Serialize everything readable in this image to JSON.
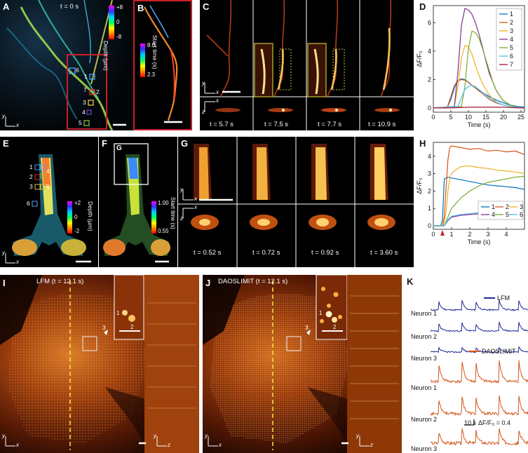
{
  "panels": {
    "A": {
      "label": "A",
      "time": "t = 0 s",
      "colorbar_label": "Depth (μm)",
      "colorbar_ticks": [
        "+8",
        "0",
        "-8"
      ],
      "rois": [
        "6",
        "1",
        "7",
        "2",
        "3",
        "4",
        "5"
      ]
    },
    "B": {
      "label": "B",
      "colorbar_label": "Start time (s)",
      "colorbar_ticks": [
        "8.0",
        "2.3"
      ]
    },
    "C": {
      "label": "C",
      "times": [
        "t = 5.7 s",
        "t = 7.5 s",
        "t = 7.7 s",
        "t = 10.9 s"
      ]
    },
    "E": {
      "label": "E",
      "colorbar_label": "Depth (μm)",
      "colorbar_ticks": [
        "+2",
        "0",
        "-2"
      ],
      "rois": [
        "1",
        "2",
        "3",
        "4",
        "5",
        "6"
      ]
    },
    "F": {
      "label": "F",
      "inset_label": "G",
      "colorbar_label": "Start time (s)",
      "colorbar_ticks": [
        "1.00",
        "0.55"
      ]
    },
    "G": {
      "label": "G",
      "times": [
        "t = 0.52 s",
        "t = 0.72 s",
        "t = 0.92 s",
        "t = 3.60 s"
      ]
    },
    "I": {
      "label": "I",
      "title": "LFM (t = 12.1 s)",
      "markers": [
        "3",
        "1",
        "2"
      ]
    },
    "J": {
      "label": "J",
      "title": "DAOSLIMIT (t = 12.1 s)",
      "markers": [
        "3",
        "1",
        "2"
      ]
    },
    "K": {
      "label": "K",
      "lfm_legend": "LFM",
      "dao_legend": "DAOSLIMIT",
      "neurons": [
        "Neuron 1",
        "Neuron 2",
        "Neuron 3",
        "Neuron 1",
        "Neuron 2",
        "Neuron 3"
      ],
      "scale_time": "10 s",
      "scale_amp": "ΔF/F₀ = 0.4"
    }
  },
  "axes_labels": {
    "x": "x",
    "y": "y",
    "z": "z"
  },
  "chart_data": [
    {
      "type": "line",
      "panel": "D",
      "xlabel": "Time (s)",
      "ylabel": "ΔF/F₀",
      "xlim": [
        0,
        26
      ],
      "ylim": [
        -0.3,
        7.2
      ],
      "xticks": [
        0,
        5,
        10,
        15,
        20,
        25
      ],
      "yticks": [
        0,
        2,
        4,
        6
      ],
      "legend_position": "top-right",
      "series": [
        {
          "name": "1",
          "color": "#0072BD",
          "x": [
            0,
            4,
            5,
            6,
            7,
            8,
            9,
            10,
            11,
            12,
            14,
            16,
            18,
            20,
            22,
            24,
            26
          ],
          "values": [
            0,
            0.05,
            0.6,
            1.4,
            1.9,
            2.05,
            2.0,
            1.8,
            1.6,
            1.4,
            1.1,
            0.8,
            0.55,
            0.35,
            0.2,
            0.1,
            0.05
          ]
        },
        {
          "name": "2",
          "color": "#D95319",
          "x": [
            0,
            4,
            5,
            6,
            7,
            8,
            9,
            10,
            11,
            12,
            14,
            16,
            18,
            20,
            22,
            24,
            26
          ],
          "values": [
            0,
            0.05,
            0.8,
            1.6,
            1.9,
            2.0,
            1.95,
            1.8,
            1.6,
            1.4,
            1.0,
            0.6,
            0.35,
            0.2,
            0.1,
            0.05,
            0.0
          ]
        },
        {
          "name": "3",
          "color": "#EDB120",
          "x": [
            0,
            6,
            7,
            8,
            9,
            10,
            11,
            12,
            13,
            14,
            16,
            18,
            20,
            22,
            24,
            26
          ],
          "values": [
            0,
            0.1,
            1.5,
            3.5,
            4.4,
            4.3,
            3.8,
            3.0,
            2.3,
            1.7,
            0.9,
            0.4,
            0.2,
            0.1,
            0.05,
            0.0
          ]
        },
        {
          "name": "4",
          "color": "#7E2F8E",
          "x": [
            0,
            6,
            7,
            8,
            9,
            10,
            11,
            12,
            13,
            14,
            15,
            16,
            18,
            20,
            22,
            24,
            26
          ],
          "values": [
            0,
            0.1,
            2.5,
            5.8,
            7.0,
            6.9,
            6.6,
            6.0,
            5.2,
            4.3,
            3.3,
            2.4,
            1.2,
            0.5,
            0.2,
            0.05,
            0.0
          ]
        },
        {
          "name": "5",
          "color": "#77AC30",
          "x": [
            0,
            8,
            9,
            10,
            11,
            12,
            13,
            14,
            15,
            16,
            17,
            18,
            20,
            22,
            24,
            26
          ],
          "values": [
            0,
            0.1,
            1.5,
            4.2,
            5.4,
            5.3,
            4.9,
            4.2,
            3.4,
            2.6,
            1.8,
            1.2,
            0.5,
            0.2,
            0.05,
            0.0
          ]
        },
        {
          "name": "6",
          "color": "#4DBEEE",
          "x": [
            0,
            7,
            8,
            9,
            10,
            11,
            12,
            13,
            14,
            16,
            18,
            20,
            22,
            24,
            26
          ],
          "values": [
            0,
            0.1,
            0.7,
            1.3,
            1.5,
            1.6,
            1.5,
            1.3,
            1.1,
            0.7,
            0.4,
            0.2,
            0.1,
            0.05,
            0.0
          ]
        },
        {
          "name": "7",
          "color": "#A2142F",
          "x": [
            0,
            5,
            10,
            15,
            20,
            25,
            26
          ],
          "values": [
            0,
            0.0,
            0.05,
            0.05,
            0.05,
            0.0,
            0.0
          ]
        }
      ]
    },
    {
      "type": "line",
      "panel": "H",
      "xlabel": "Time (s)",
      "ylabel": "ΔF/F₀",
      "xlim": [
        0,
        5
      ],
      "ylim": [
        -0.2,
        4.8
      ],
      "xticks": [
        0,
        1,
        2,
        3,
        4
      ],
      "yticks": [
        0,
        1,
        2,
        3,
        4
      ],
      "legend_position": "bottom-right",
      "series": [
        {
          "name": "1",
          "color": "#0072BD",
          "x": [
            0,
            0.4,
            0.5,
            0.55,
            0.6,
            0.8,
            1,
            1.5,
            2,
            2.5,
            3,
            3.5,
            4,
            4.5,
            5
          ],
          "values": [
            0,
            0,
            0.3,
            1.5,
            2.7,
            2.8,
            2.75,
            2.65,
            2.55,
            2.45,
            2.35,
            2.3,
            2.25,
            2.2,
            2.1
          ]
        },
        {
          "name": "2",
          "color": "#D95319",
          "x": [
            0,
            0.5,
            0.6,
            0.7,
            0.8,
            0.9,
            1,
            1.5,
            2,
            2.5,
            3,
            3.5,
            4,
            4.5,
            5
          ],
          "values": [
            0,
            0,
            0.5,
            2.2,
            3.8,
            4.5,
            4.6,
            4.5,
            4.4,
            4.45,
            4.3,
            4.35,
            4.25,
            4.3,
            4.1
          ]
        },
        {
          "name": "3",
          "color": "#EDB120",
          "x": [
            0,
            0.55,
            0.7,
            0.8,
            0.9,
            1,
            1.2,
            1.5,
            2,
            2.5,
            3,
            3.5,
            4,
            4.5,
            5
          ],
          "values": [
            0,
            0,
            0.8,
            2.0,
            2.7,
            3.0,
            3.2,
            3.4,
            3.45,
            3.35,
            3.3,
            3.2,
            3.15,
            3.1,
            3.0
          ]
        },
        {
          "name": "4",
          "color": "#7E2F8E",
          "x": [
            0,
            0.6,
            0.8,
            1,
            1.5,
            2,
            2.5,
            3,
            3.5,
            4,
            4.5,
            5
          ],
          "values": [
            0,
            0,
            0.3,
            0.5,
            0.6,
            0.65,
            0.7,
            0.75,
            0.8,
            0.85,
            0.9,
            0.9
          ]
        },
        {
          "name": "5",
          "color": "#77AC30",
          "x": [
            0,
            0.6,
            0.8,
            1,
            1.5,
            2,
            2.5,
            3,
            3.5,
            4,
            4.5,
            5
          ],
          "values": [
            0,
            0,
            0.5,
            1.0,
            1.6,
            2.0,
            2.3,
            2.5,
            2.6,
            2.7,
            2.8,
            2.85
          ]
        },
        {
          "name": "6",
          "color": "#4DBEEE",
          "x": [
            0,
            0.6,
            0.8,
            1,
            1.5,
            2,
            2.5,
            3,
            3.5,
            4,
            4.5,
            5
          ],
          "values": [
            0,
            0,
            0.35,
            0.55,
            0.65,
            0.7,
            0.75,
            0.8,
            0.85,
            0.85,
            0.9,
            0.9
          ]
        }
      ],
      "annotation": "red triangle at t = 0.5 s"
    }
  ]
}
